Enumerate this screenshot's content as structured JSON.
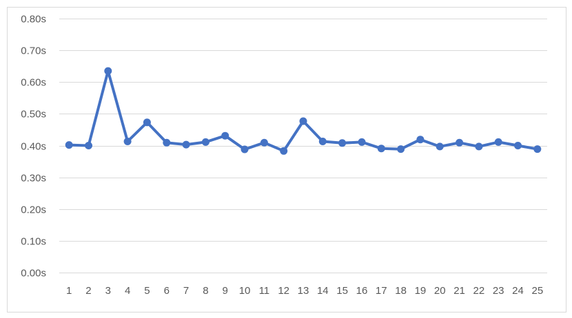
{
  "chart_data": {
    "type": "line",
    "title": "",
    "xlabel": "",
    "ylabel": "",
    "categories": [
      "1",
      "2",
      "3",
      "4",
      "5",
      "6",
      "7",
      "8",
      "9",
      "10",
      "11",
      "12",
      "13",
      "14",
      "15",
      "16",
      "17",
      "18",
      "19",
      "20",
      "21",
      "22",
      "23",
      "24",
      "25"
    ],
    "series": [
      {
        "values": [
          0.402,
          0.4,
          0.635,
          0.413,
          0.473,
          0.409,
          0.403,
          0.411,
          0.431,
          0.388,
          0.409,
          0.383,
          0.477,
          0.413,
          0.408,
          0.411,
          0.391,
          0.389,
          0.419,
          0.397,
          0.409,
          0.397,
          0.411,
          0.4,
          0.389
        ],
        "color": "#4472c4"
      }
    ],
    "ylim": [
      0,
      0.8
    ],
    "yticks": [
      0.0,
      0.1,
      0.2,
      0.3,
      0.4,
      0.5,
      0.6,
      0.7,
      0.8
    ],
    "ytick_labels": [
      "0.00s",
      "0.10s",
      "0.20s",
      "0.30s",
      "0.40s",
      "0.50s",
      "0.60s",
      "0.70s",
      "0.80s"
    ],
    "grid": true,
    "legend": "none",
    "colors": {
      "series": "#4472c4",
      "grid": "#d9d9d9",
      "tick_text": "#595959",
      "border": "#d9d9d9"
    }
  }
}
